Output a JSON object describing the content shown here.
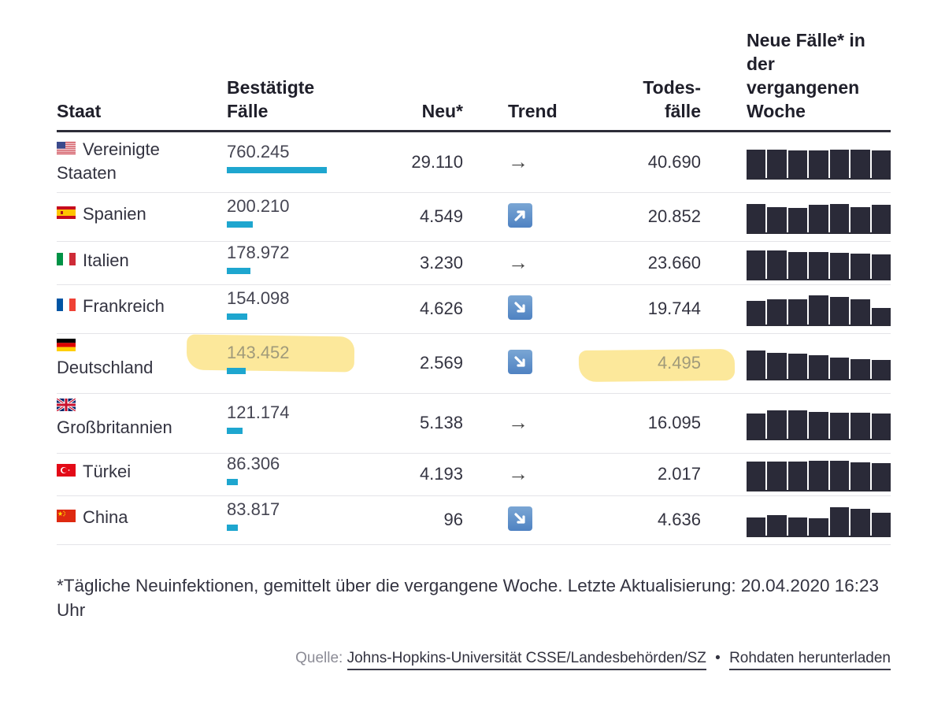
{
  "table": {
    "headers": {
      "staat": "Staat",
      "faelle_1": "Bestätigte",
      "faelle_2": "Fälle",
      "neu": "Neu*",
      "trend": "Trend",
      "todes_1": "Todes-",
      "todes_2": "fälle",
      "woche_1": "Neue Fälle* in",
      "woche_2": "der",
      "woche_3": "vergangenen",
      "woche_4": "Woche"
    }
  },
  "chart_data": {
    "type": "table",
    "columns": [
      "Staat",
      "Bestätigte Fälle",
      "Neu*",
      "Trend",
      "Todesfälle",
      "Neue Fälle* in der vergangenen Woche"
    ],
    "max_cases": 760245,
    "rows": [
      {
        "country": "Vereinigte Staaten",
        "line1": "Vereinigte",
        "line2": "Staaten",
        "flag": "flag-usa-icon",
        "cases": 760245,
        "cases_text": "760.245",
        "neu": "29.110",
        "trend": "flat",
        "deaths": "40.690",
        "weekly": [
          0.95,
          0.95,
          0.92,
          0.93,
          0.95,
          0.94,
          0.93
        ],
        "highlight": false
      },
      {
        "country": "Spanien",
        "line1": "Spanien",
        "line2": "",
        "flag": "flag-spain-icon",
        "cases": 200210,
        "cases_text": "200.210",
        "neu": "4.549",
        "trend": "up",
        "deaths": "20.852",
        "weekly": [
          0.95,
          0.85,
          0.82,
          0.93,
          0.95,
          0.85,
          0.92
        ],
        "highlight": false
      },
      {
        "country": "Italien",
        "line1": "Italien",
        "line2": "",
        "flag": "flag-italy-icon",
        "cases": 178972,
        "cases_text": "178.972",
        "neu": "3.230",
        "trend": "flat",
        "deaths": "23.660",
        "weekly": [
          0.95,
          0.95,
          0.9,
          0.9,
          0.88,
          0.85,
          0.82
        ],
        "highlight": false
      },
      {
        "country": "Frankreich",
        "line1": "Frankreich",
        "line2": "",
        "flag": "flag-france-icon",
        "cases": 154098,
        "cases_text": "154.098",
        "neu": "4.626",
        "trend": "down",
        "deaths": "19.744",
        "weekly": [
          0.8,
          0.85,
          0.85,
          0.98,
          0.92,
          0.85,
          0.55
        ],
        "highlight": false
      },
      {
        "country": "Deutschland",
        "line1": "",
        "line2": "Deutschland",
        "flag": "flag-germany-icon",
        "cases": 143452,
        "cases_text": "143.452",
        "neu": "2.569",
        "trend": "down",
        "deaths": "4.495",
        "weekly": [
          0.95,
          0.88,
          0.85,
          0.8,
          0.72,
          0.66,
          0.62
        ],
        "highlight": true
      },
      {
        "country": "Großbritannien",
        "line1": "",
        "line2": "Großbritannien",
        "flag": "flag-uk-icon",
        "cases": 121174,
        "cases_text": "121.174",
        "neu": "5.138",
        "trend": "flat",
        "deaths": "16.095",
        "weekly": [
          0.85,
          0.95,
          0.95,
          0.9,
          0.88,
          0.88,
          0.85
        ],
        "highlight": false
      },
      {
        "country": "Türkei",
        "line1": "Türkei",
        "line2": "",
        "flag": "flag-turkey-icon",
        "cases": 86306,
        "cases_text": "86.306",
        "neu": "4.193",
        "trend": "flat",
        "deaths": "2.017",
        "weekly": [
          0.95,
          0.95,
          0.95,
          0.98,
          0.98,
          0.92,
          0.9
        ],
        "highlight": false
      },
      {
        "country": "China",
        "line1": "China",
        "line2": "",
        "flag": "flag-china-icon",
        "cases": 83817,
        "cases_text": "83.817",
        "neu": "96",
        "trend": "down",
        "deaths": "4.636",
        "weekly": [
          0.6,
          0.68,
          0.6,
          0.58,
          0.95,
          0.9,
          0.75
        ],
        "highlight": false
      }
    ]
  },
  "footnote": "*Tägliche Neuinfektionen, gemittelt über die vergangene Woche. Letzte Aktualisierung: 20.04.2020 16:23 Uhr",
  "source": {
    "label": "Quelle:",
    "link": "Johns-Hopkins-Universität CSSE/Landesbehörden/SZ",
    "download": "Rohdaten herunterladen"
  },
  "colors": {
    "bar": "#1ea6cf",
    "spark": "#2a2a38",
    "highlight": "#fbe48a"
  }
}
